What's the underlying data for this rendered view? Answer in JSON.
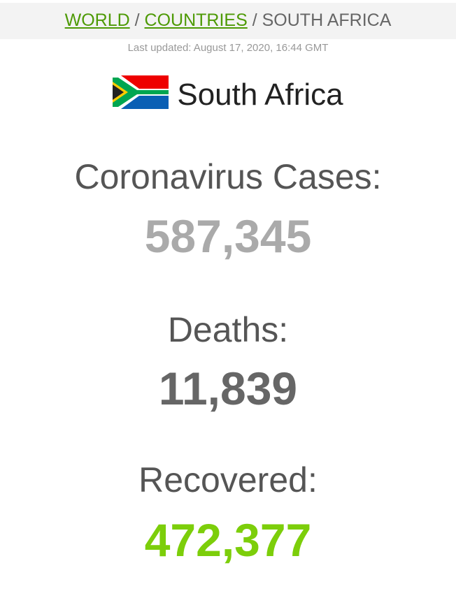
{
  "breadcrumb": {
    "world": "WORLD",
    "countries": "COUNTRIES",
    "current": "SOUTH AFRICA",
    "separator": "/"
  },
  "last_updated": "Last updated: August 17, 2020, 16:44 GMT",
  "country": {
    "name": "South Africa",
    "flag_icon": "south-africa-flag-icon"
  },
  "stats": {
    "cases": {
      "label": "Coronavirus Cases:",
      "value": "587,345",
      "color": "#aaaaaa"
    },
    "deaths": {
      "label": "Deaths:",
      "value": "11,839",
      "color": "#666666"
    },
    "recovered": {
      "label": "Recovered:",
      "value": "472,377",
      "color": "#7cce0a"
    }
  }
}
